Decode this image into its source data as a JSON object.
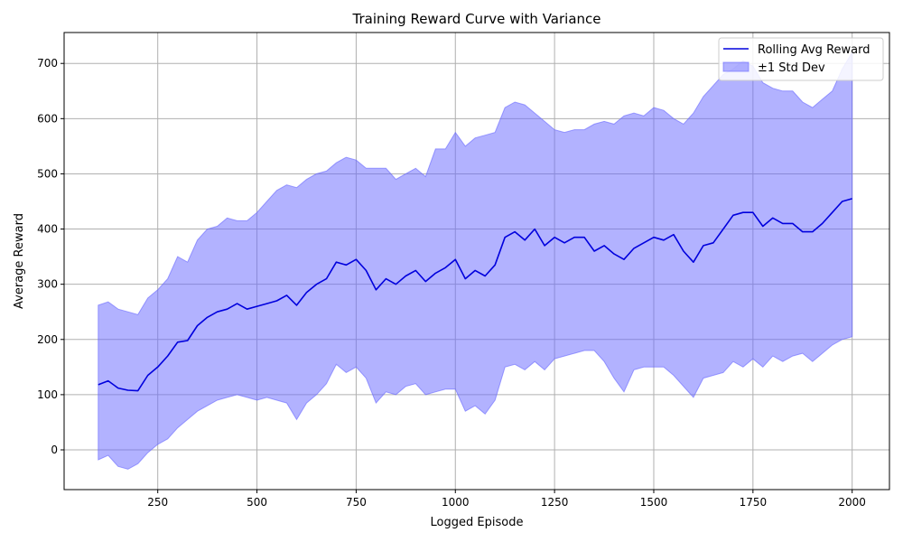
{
  "chart_data": {
    "type": "line",
    "title": "Training Reward Curve with Variance",
    "xlabel": "Logged Episode",
    "ylabel": "Average Reward",
    "xlim": [
      14,
      2094
    ],
    "ylim": [
      -72,
      756
    ],
    "xticks": [
      250,
      500,
      750,
      1000,
      1250,
      1500,
      1750,
      2000
    ],
    "yticks": [
      0,
      100,
      200,
      300,
      400,
      500,
      600,
      700
    ],
    "grid": true,
    "legend_position": "top-right",
    "colors": {
      "line": "#0000dd",
      "band": "#6666ff",
      "grid": "#b0b0b0"
    },
    "series": [
      {
        "name": "Rolling Avg Reward",
        "kind": "line",
        "x": [
          100,
          125,
          150,
          175,
          200,
          225,
          250,
          275,
          300,
          325,
          350,
          375,
          400,
          425,
          450,
          475,
          500,
          525,
          550,
          575,
          600,
          625,
          650,
          675,
          700,
          725,
          750,
          775,
          800,
          825,
          850,
          875,
          900,
          925,
          950,
          975,
          1000,
          1025,
          1050,
          1075,
          1100,
          1125,
          1150,
          1175,
          1200,
          1225,
          1250,
          1275,
          1300,
          1325,
          1350,
          1375,
          1400,
          1425,
          1450,
          1475,
          1500,
          1525,
          1550,
          1575,
          1600,
          1625,
          1650,
          1675,
          1700,
          1725,
          1750,
          1775,
          1800,
          1825,
          1850,
          1875,
          1900,
          1925,
          1950,
          1975,
          2000
        ],
        "y": [
          118,
          125,
          112,
          108,
          107,
          135,
          150,
          170,
          195,
          198,
          225,
          240,
          250,
          255,
          265,
          255,
          260,
          265,
          270,
          280,
          262,
          285,
          300,
          310,
          340,
          335,
          345,
          325,
          290,
          310,
          300,
          315,
          325,
          305,
          320,
          330,
          345,
          310,
          325,
          315,
          335,
          385,
          395,
          380,
          400,
          370,
          385,
          375,
          385,
          385,
          360,
          370,
          355,
          345,
          365,
          375,
          385,
          380,
          390,
          360,
          340,
          370,
          375,
          400,
          425,
          430,
          430,
          405,
          420,
          410,
          410,
          395,
          395,
          410,
          430,
          450,
          455
        ]
      },
      {
        "name": "±1 Std Dev",
        "kind": "band",
        "x": [
          100,
          125,
          150,
          175,
          200,
          225,
          250,
          275,
          300,
          325,
          350,
          375,
          400,
          425,
          450,
          475,
          500,
          525,
          550,
          575,
          600,
          625,
          650,
          675,
          700,
          725,
          750,
          775,
          800,
          825,
          850,
          875,
          900,
          925,
          950,
          975,
          1000,
          1025,
          1050,
          1075,
          1100,
          1125,
          1150,
          1175,
          1200,
          1225,
          1250,
          1275,
          1300,
          1325,
          1350,
          1375,
          1400,
          1425,
          1450,
          1475,
          1500,
          1525,
          1550,
          1575,
          1600,
          1625,
          1650,
          1675,
          1700,
          1725,
          1750,
          1775,
          1800,
          1825,
          1850,
          1875,
          1900,
          1925,
          1950,
          1975,
          2000
        ],
        "upper": [
          262,
          268,
          255,
          250,
          245,
          275,
          290,
          310,
          350,
          340,
          380,
          400,
          405,
          420,
          415,
          415,
          430,
          450,
          470,
          480,
          475,
          490,
          500,
          505,
          520,
          530,
          525,
          510,
          510,
          510,
          490,
          500,
          510,
          495,
          545,
          545,
          575,
          550,
          565,
          570,
          575,
          620,
          630,
          625,
          610,
          595,
          580,
          575,
          580,
          580,
          590,
          595,
          590,
          605,
          610,
          605,
          620,
          615,
          600,
          590,
          610,
          640,
          660,
          680,
          690,
          705,
          695,
          665,
          655,
          650,
          650,
          630,
          620,
          635,
          650,
          690,
          720
        ],
        "lower": [
          -18,
          -10,
          -30,
          -35,
          -25,
          -5,
          10,
          20,
          40,
          55,
          70,
          80,
          90,
          95,
          100,
          95,
          90,
          95,
          90,
          85,
          55,
          85,
          100,
          120,
          155,
          140,
          150,
          130,
          85,
          105,
          100,
          115,
          120,
          100,
          105,
          110,
          110,
          70,
          80,
          65,
          90,
          150,
          155,
          145,
          160,
          145,
          165,
          170,
          175,
          180,
          180,
          160,
          130,
          105,
          145,
          150,
          150,
          150,
          135,
          115,
          95,
          130,
          135,
          140,
          160,
          150,
          165,
          150,
          170,
          160,
          170,
          175,
          160,
          175,
          190,
          200,
          205
        ]
      }
    ]
  }
}
